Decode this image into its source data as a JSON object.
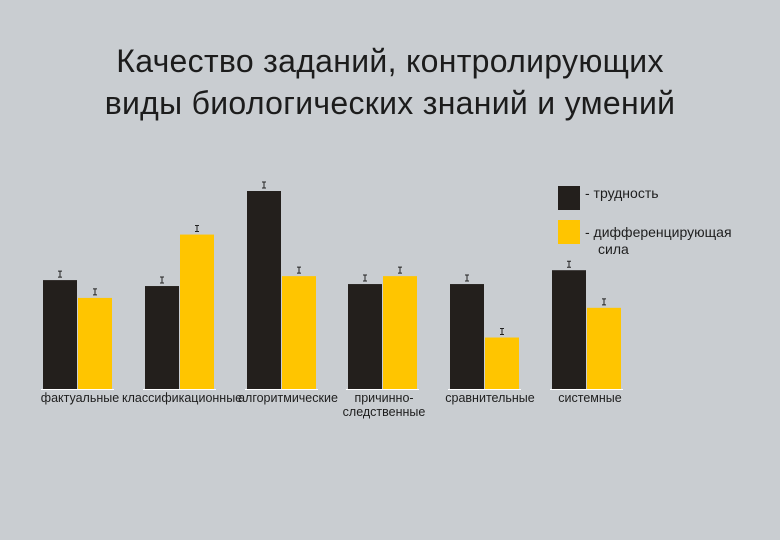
{
  "title": {
    "line1": "Качество заданий, контролирующих",
    "line2": "виды  биологических знаний и умений"
  },
  "legend": [
    {
      "label": "- трудность",
      "color": "#231f1c"
    },
    {
      "label_line1": "- дифференцирующая",
      "label_line2": "сила",
      "color": "#ffc500"
    }
  ],
  "chart_data": {
    "type": "bar",
    "categories": [
      {
        "line1": "фактуальные",
        "line2": ""
      },
      {
        "line1": "классификационные",
        "line2": ""
      },
      {
        "line1": "алгоритмические",
        "line2": ""
      },
      {
        "line1": "причинно-",
        "line2": "следственные"
      },
      {
        "line1": "сравнительные",
        "line2": ""
      },
      {
        "line1": "системные",
        "line2": ""
      }
    ],
    "series": [
      {
        "name": "- трудность",
        "color": "#231f1c",
        "values": [
          0.55,
          0.52,
          1.0,
          0.53,
          0.53,
          0.6
        ]
      },
      {
        "name": "- дифференцирующая сила",
        "color": "#ffc500",
        "values": [
          0.46,
          0.78,
          0.57,
          0.57,
          0.26,
          0.41
        ]
      }
    ],
    "ylim": [
      0,
      1.0
    ],
    "grid": false,
    "legend_position": "top-right"
  }
}
